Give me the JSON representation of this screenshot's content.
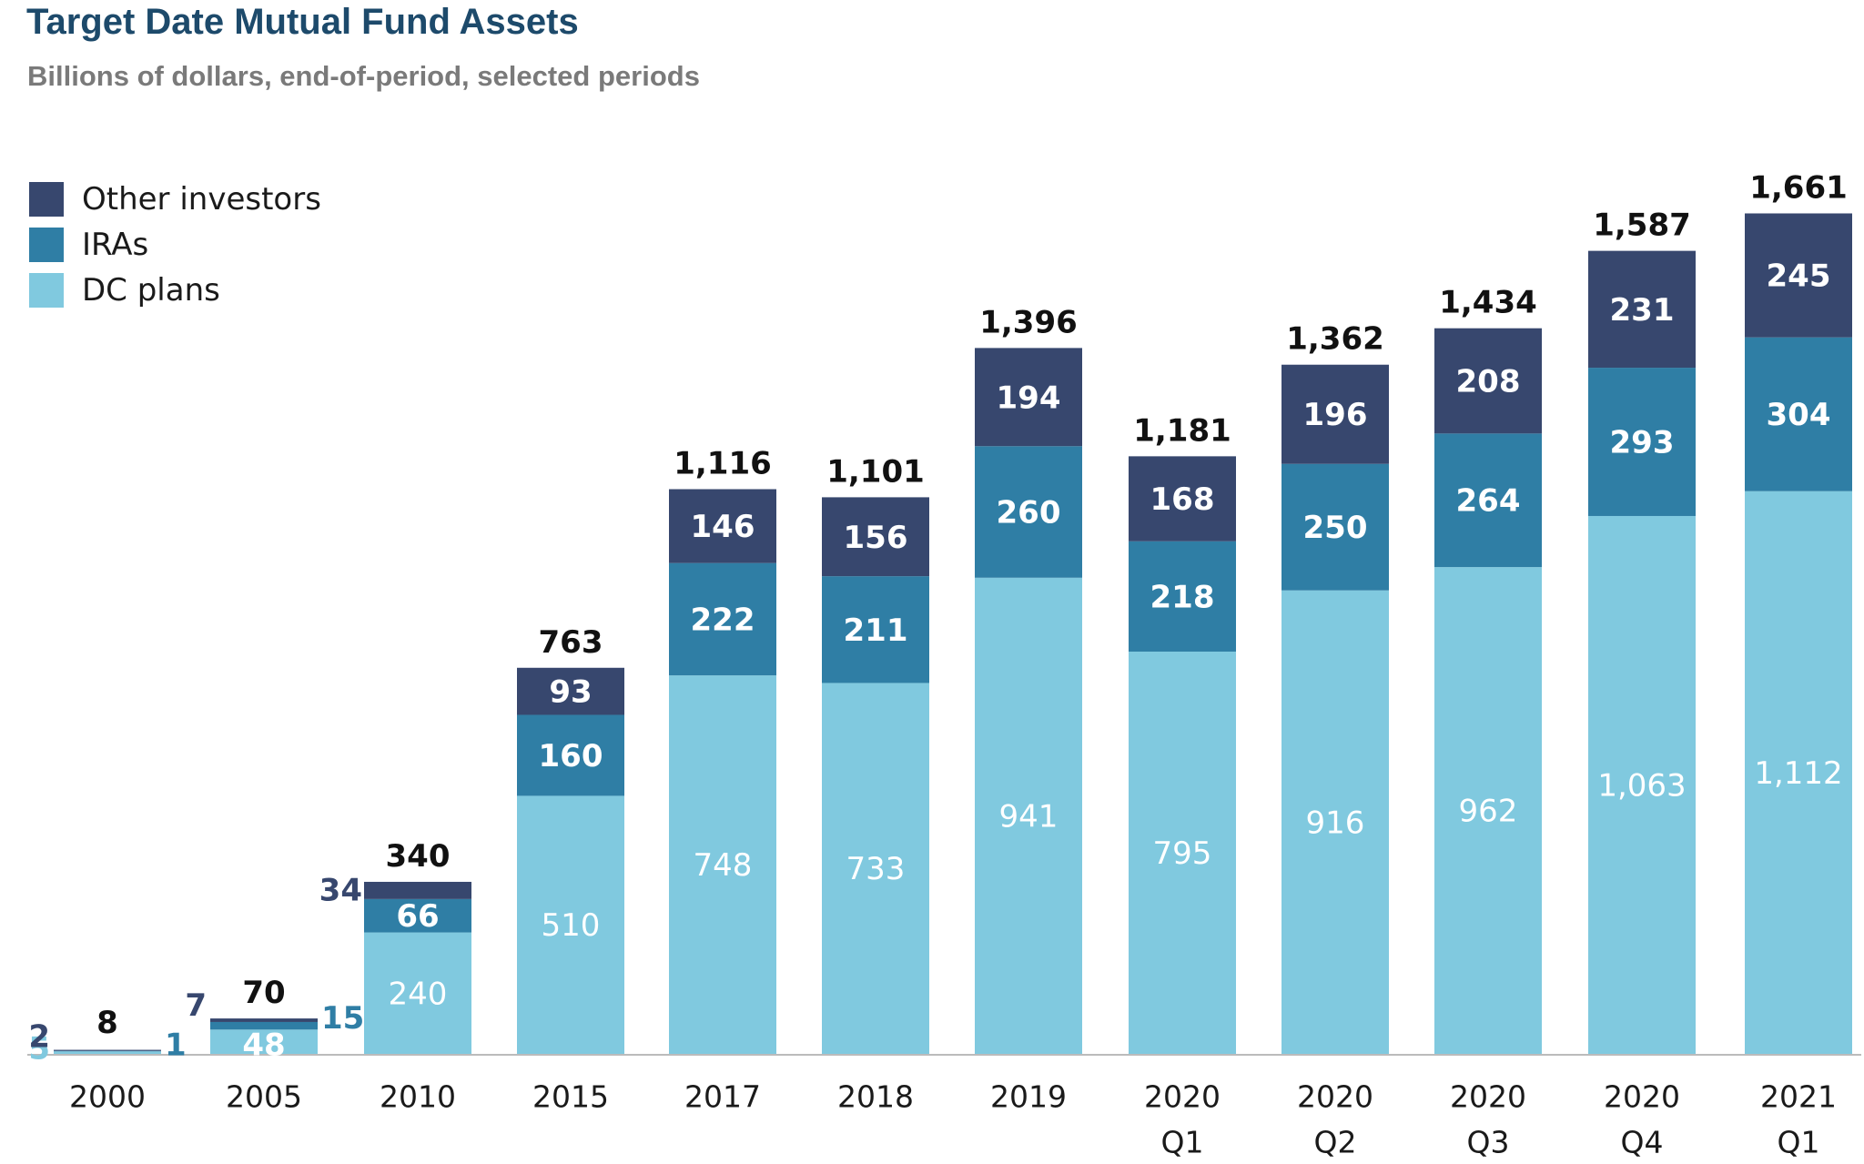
{
  "header": {
    "title": "Target Date Mutual Fund Assets",
    "subtitle": "Billions of dollars, end-of-period, selected periods"
  },
  "colors": {
    "other_investors": "#37476e",
    "iras": "#2f7ea5",
    "dc_plans": "#80c9df",
    "axis": "#bbbbbb",
    "total_label": "#111111",
    "inside_label": "#ffffff"
  },
  "chart_data": {
    "type": "bar",
    "stacked": true,
    "title": "Target Date Mutual Fund Assets",
    "subtitle": "Billions of dollars, end-of-period, selected periods",
    "xlabel": "",
    "ylabel": "",
    "ylim": [
      0,
      1700
    ],
    "grid": false,
    "legend_position": "top-left",
    "categories": [
      [
        "2000"
      ],
      [
        "2005"
      ],
      [
        "2010"
      ],
      [
        "2015"
      ],
      [
        "2017"
      ],
      [
        "2018"
      ],
      [
        "2019"
      ],
      [
        "2020",
        "Q1"
      ],
      [
        "2020",
        "Q2"
      ],
      [
        "2020",
        "Q3"
      ],
      [
        "2020",
        "Q4"
      ],
      [
        "2021",
        "Q1"
      ]
    ],
    "series": [
      {
        "name": "DC plans",
        "values": [
          5,
          48,
          240,
          510,
          748,
          733,
          941,
          795,
          916,
          962,
          1063,
          1112
        ],
        "labels": [
          "5",
          "48",
          "240",
          "510",
          "748",
          "733",
          "941",
          "795",
          "916",
          "962",
          "1,063",
          "1,112"
        ]
      },
      {
        "name": "IRAs",
        "values": [
          1,
          15,
          66,
          160,
          222,
          211,
          260,
          218,
          250,
          264,
          293,
          304
        ],
        "labels": [
          "1",
          "15",
          "66",
          "160",
          "222",
          "211",
          "260",
          "218",
          "250",
          "264",
          "293",
          "304"
        ]
      },
      {
        "name": "Other investors",
        "values": [
          2,
          7,
          34,
          93,
          146,
          156,
          194,
          168,
          196,
          208,
          231,
          245
        ],
        "labels": [
          "2",
          "7",
          "34",
          "93",
          "146",
          "156",
          "194",
          "168",
          "196",
          "208",
          "231",
          "245"
        ]
      }
    ],
    "totals": [
      "8",
      "70",
      "340",
      "763",
      "1,116",
      "1,101",
      "1,396",
      "1,181",
      "1,362",
      "1,434",
      "1,587",
      "1,661"
    ]
  }
}
